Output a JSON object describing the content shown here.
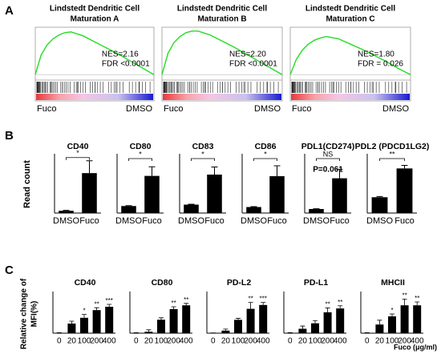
{
  "panel_labels": [
    "A",
    "B",
    "C"
  ],
  "panel_b_ylabel": "Read count",
  "panel_c_ylabel": [
    "Relative change of",
    "MFI(%)"
  ],
  "panel_c_xlabel": "Fuco (μg/ml)",
  "chart_data": [
    {
      "type": "line",
      "title": [
        "Lindstedt Dendritic Cell",
        "Maturation A"
      ],
      "annotations": [
        "NES=2.16",
        "FDR <0.0001"
      ],
      "labels": [
        "Fuco",
        "DMSO"
      ],
      "color": "#22dd22",
      "x": [
        0,
        5,
        10,
        15,
        20,
        25,
        30,
        40,
        50,
        60,
        70,
        80,
        90,
        100
      ],
      "values": [
        0,
        0.26,
        0.39,
        0.47,
        0.52,
        0.55,
        0.56,
        0.51,
        0.43,
        0.35,
        0.27,
        0.18,
        0.09,
        0
      ],
      "xlim": [
        0,
        100
      ],
      "ylim": [
        -0.05,
        0.6
      ]
    },
    {
      "type": "line",
      "title": [
        "Lindstedt Dendritic Cell",
        "Maturation B"
      ],
      "annotations": [
        "NES=2.20",
        "FDR <0.0001"
      ],
      "labels": [
        "Fuco",
        "DMSO"
      ],
      "color": "#22dd22",
      "x": [
        0,
        5,
        10,
        15,
        20,
        25,
        30,
        40,
        50,
        60,
        70,
        80,
        90,
        100
      ],
      "values": [
        0,
        0.28,
        0.42,
        0.5,
        0.55,
        0.57,
        0.57,
        0.52,
        0.44,
        0.36,
        0.27,
        0.18,
        0.09,
        0
      ],
      "xlim": [
        0,
        100
      ],
      "ylim": [
        -0.05,
        0.6
      ]
    },
    {
      "type": "line",
      "title": [
        "Lindstedt Dendritic Cell",
        "Maturation C"
      ],
      "annotations": [
        "NES=1.80",
        "FDR = 0.026"
      ],
      "labels": [
        "Fuco",
        "DMSO"
      ],
      "color": "#22dd22",
      "x": [
        0,
        5,
        10,
        15,
        20,
        25,
        30,
        40,
        50,
        60,
        70,
        80,
        90,
        100
      ],
      "values": [
        0,
        0.2,
        0.32,
        0.4,
        0.45,
        0.48,
        0.5,
        0.47,
        0.4,
        0.33,
        0.25,
        0.17,
        0.08,
        0
      ],
      "xlim": [
        0,
        100
      ],
      "ylim": [
        -0.05,
        0.6
      ]
    },
    {
      "type": "bar",
      "title": "CD40",
      "categories": [
        "DMSO",
        "Fuco"
      ],
      "values": [
        10,
        178
      ],
      "errors": [
        2,
        55
      ],
      "color": "#000000",
      "ylim": [
        0,
        250
      ],
      "annotations": [
        "*"
      ]
    },
    {
      "type": "bar",
      "title": "CD80",
      "categories": [
        "DMSO",
        "Fuco"
      ],
      "values": [
        50,
        265
      ],
      "errors": [
        3,
        65
      ],
      "color": "#000000",
      "ylim": [
        0,
        400
      ],
      "annotations": [
        "*"
      ]
    },
    {
      "type": "bar",
      "title": "CD83",
      "categories": [
        "DMSO",
        "Fuco"
      ],
      "values": [
        105,
        480
      ],
      "errors": [
        5,
        95
      ],
      "color": "#000000",
      "ylim": [
        0,
        700
      ],
      "annotations": [
        "*"
      ]
    },
    {
      "type": "bar",
      "title": "CD86",
      "categories": [
        "DMSO",
        "Fuco"
      ],
      "values": [
        75,
        460
      ],
      "errors": [
        5,
        130
      ],
      "color": "#000000",
      "ylim": [
        0,
        700
      ],
      "annotations": [
        "*"
      ]
    },
    {
      "type": "bar",
      "title": "PDL1(CD274)",
      "categories": [
        "DMSO",
        "Fuco"
      ],
      "values": [
        180,
        1550
      ],
      "errors": [
        10,
        400
      ],
      "color": "#000000",
      "ylim": [
        0,
        2500
      ],
      "annotations": [
        "NS",
        "P=0.061"
      ]
    },
    {
      "type": "bar",
      "title": "PDL2 (PDCD1LG2)",
      "categories": [
        "DMSO",
        "Fuco"
      ],
      "values": [
        62,
        175
      ],
      "errors": [
        3,
        12
      ],
      "color": "#000000",
      "ylim": [
        0,
        220
      ],
      "annotations": [
        "**"
      ]
    },
    {
      "type": "dose",
      "title": "CD40",
      "categories": [
        "0",
        "20",
        "100",
        "200",
        "400"
      ],
      "values": [
        0,
        20,
        32,
        48,
        55
      ],
      "errors": [
        1,
        5,
        7,
        5,
        5
      ],
      "stars": [
        null,
        null,
        "*",
        "**",
        "***"
      ],
      "color": "#000000",
      "ylim": [
        0,
        80
      ]
    },
    {
      "type": "dose",
      "title": "CD80",
      "categories": [
        "0",
        "20",
        "100",
        "200",
        "400"
      ],
      "values": [
        0,
        3,
        28,
        50,
        58
      ],
      "errors": [
        1,
        4,
        4,
        5,
        4
      ],
      "stars": [
        null,
        null,
        null,
        "**",
        "**"
      ],
      "color": "#000000",
      "ylim": [
        0,
        80
      ]
    },
    {
      "type": "dose",
      "title": "PD-L2",
      "categories": [
        "0",
        "20",
        "100",
        "200",
        "400"
      ],
      "values": [
        0,
        10,
        52,
        95,
        110
      ],
      "errors": [
        1,
        6,
        6,
        25,
        10
      ],
      "stars": [
        null,
        null,
        null,
        "**",
        "***"
      ],
      "color": "#000000",
      "ylim": [
        0,
        150
      ]
    },
    {
      "type": "dose",
      "title": "PD-L1",
      "categories": [
        "0",
        "20",
        "100",
        "200",
        "400"
      ],
      "values": [
        0,
        8,
        18,
        38,
        45
      ],
      "errors": [
        1,
        5,
        5,
        8,
        5
      ],
      "stars": [
        null,
        null,
        null,
        "**",
        "**"
      ],
      "color": "#000000",
      "ylim": [
        0,
        70
      ]
    },
    {
      "type": "dose",
      "title": "MHCII",
      "categories": [
        "0",
        "20",
        "100",
        "200",
        "400"
      ],
      "values": [
        0,
        18,
        35,
        58,
        58
      ],
      "errors": [
        1,
        9,
        5,
        13,
        7
      ],
      "stars": [
        null,
        null,
        "*",
        "**",
        "**"
      ],
      "color": "#000000",
      "ylim": [
        0,
        80
      ]
    }
  ]
}
